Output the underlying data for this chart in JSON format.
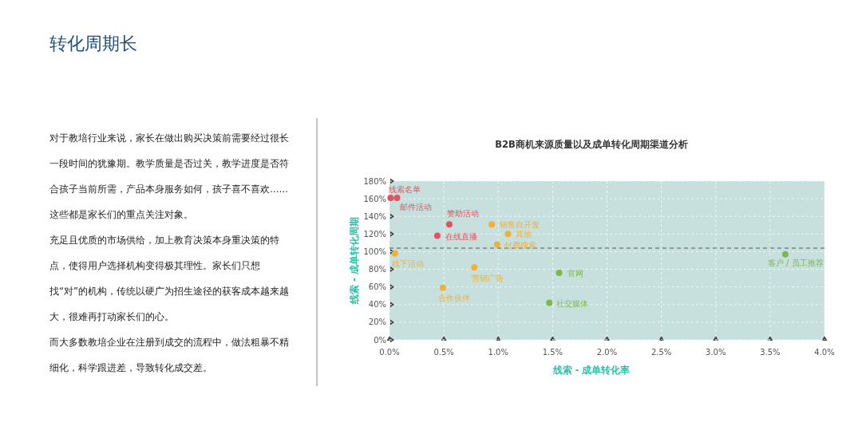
{
  "chart_data": {
    "type": "scatter",
    "title": "B2B商机来源质量以及成单转化周期渠道分析",
    "xlabel": "线索 - 成单转化率",
    "ylabel": "线索 - 成单转化周期",
    "series": [
      {
        "color": "#e05462",
        "x": [
          0.01,
          0.07,
          0.55,
          0.44
        ],
        "values": [
          161,
          161,
          131,
          118
        ]
      },
      {
        "color": "#f2b134",
        "x": [
          0.94,
          1.09,
          0.99,
          0.05,
          0.78,
          0.49
        ],
        "values": [
          131,
          120,
          108,
          98,
          82,
          59
        ]
      },
      {
        "color": "#7db84a",
        "x": [
          1.56,
          1.47,
          3.64
        ],
        "values": [
          76,
          42,
          97
        ]
      }
    ],
    "xlim": [
      0,
      4
    ],
    "ylim": [
      0,
      180
    ],
    "xticks": [
      {
        "value": 0,
        "label": "0.0%"
      },
      {
        "value": 0.5,
        "label": "0.5%"
      },
      {
        "value": 1,
        "label": "1.0%"
      },
      {
        "value": 1.5,
        "label": "1.5%"
      },
      {
        "value": 2,
        "label": "2.0%"
      },
      {
        "value": 2.5,
        "label": "2.5%"
      },
      {
        "value": 3,
        "label": "3.0%"
      },
      {
        "value": 3.5,
        "label": "3.5%"
      },
      {
        "value": 4,
        "label": "4.0%"
      }
    ],
    "yticks": [
      {
        "value": 0,
        "label": "0%"
      },
      {
        "value": 20,
        "label": "20%"
      },
      {
        "value": 40,
        "label": "40%"
      },
      {
        "value": 60,
        "label": "60%"
      },
      {
        "value": 80,
        "label": "80%"
      },
      {
        "value": 100,
        "label": "100%"
      },
      {
        "value": 120,
        "label": "120%"
      },
      {
        "value": 140,
        "label": "140%"
      },
      {
        "value": 160,
        "label": "160%"
      },
      {
        "value": 180,
        "label": "180%"
      }
    ],
    "ref_lines": [
      {
        "axis": "y",
        "value": 104,
        "color": "#555555",
        "line_style": "dashed"
      }
    ],
    "grid": true,
    "marker": "circle",
    "annotations": [
      {
        "text": "线索名单",
        "x": 0.01,
        "y": 161
      },
      {
        "text": "邮件活动",
        "x": 0.07,
        "y": 161
      },
      {
        "text": "赞助活动",
        "x": 0.55,
        "y": 131
      },
      {
        "text": "在线直播",
        "x": 0.44,
        "y": 118
      },
      {
        "text": "销售自开发",
        "x": 0.94,
        "y": 131
      },
      {
        "text": "其他",
        "x": 1.09,
        "y": 120
      },
      {
        "text": "付费搜索",
        "x": 0.99,
        "y": 108
      },
      {
        "text": "线下活动",
        "x": 0.05,
        "y": 98
      },
      {
        "text": "营销广告",
        "x": 0.78,
        "y": 82
      },
      {
        "text": "合作伙伴",
        "x": 0.49,
        "y": 59
      },
      {
        "text": "官网",
        "x": 1.56,
        "y": 76
      },
      {
        "text": "社交媒体",
        "x": 1.47,
        "y": 42
      },
      {
        "text": "客户 / 员工推荐",
        "x": 3.64,
        "y": 97
      },
      "转化周期长",
      "对于教培行业来说，家长在做出购买决策前需要经过很长一段时间的犹豫期。教学质量是否过关，教学进度是否符合孩子当前所需，产品本身服务如何，孩子喜不喜欢……这些都是家长们的重点关注对象。",
      "充足且优质的市场供给，加上教育决策本身重决策的特点，使得用户选择机构变得极其理性。家长们只想找“对”的机构，传统以硬广为招生途径的获客成本越来越大，很难再打动家长们的心。",
      "而大多数教培企业在注册到成交的流程中，做法粗暴不精细化，科学跟进差，导致转化成交差。"
    ]
  }
}
